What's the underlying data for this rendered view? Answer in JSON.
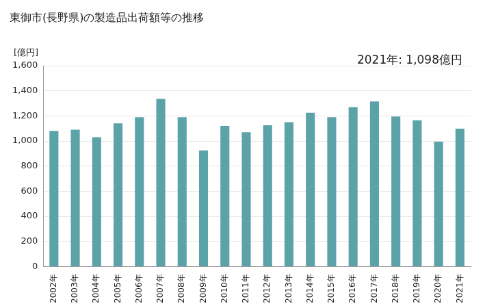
{
  "chart_data": {
    "type": "bar",
    "title": "東御市(長野県)の製造品出荷額等の推移",
    "ylabel": "[億円]",
    "annotations": [
      "2021年: 1,098億円"
    ],
    "categories": [
      "2002年",
      "2003年",
      "2004年",
      "2005年",
      "2006年",
      "2007年",
      "2008年",
      "2009年",
      "2010年",
      "2011年",
      "2012年",
      "2013年",
      "2014年",
      "2015年",
      "2016年",
      "2017年",
      "2018年",
      "2019年",
      "2020年",
      "2021年"
    ],
    "values": [
      1080,
      1090,
      1030,
      1140,
      1190,
      1335,
      1190,
      925,
      1120,
      1070,
      1125,
      1150,
      1225,
      1190,
      1270,
      1315,
      1195,
      1165,
      995,
      1098
    ],
    "color": "#5ba3a8",
    "ylim": [
      0,
      1600
    ],
    "yticks": [
      0,
      200,
      400,
      600,
      800,
      {
        "value": 1000,
        "label": "1,000"
      },
      {
        "value": 1200,
        "label": "1,200"
      },
      {
        "value": 1400,
        "label": "1,400"
      },
      {
        "value": 1600,
        "label": "1,600"
      }
    ],
    "grid": true
  }
}
